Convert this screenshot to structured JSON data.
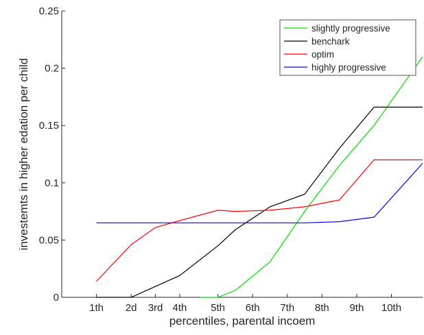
{
  "chart_data": {
    "type": "line",
    "title": "",
    "xlabel": "percentiles, parental incoem",
    "ylabel": "investemts in higher edation per child",
    "categories": [
      "1th",
      "2d",
      "3rd",
      "4th",
      "5th",
      "6th",
      "7th",
      "8th",
      "9th",
      "10th"
    ],
    "x": [
      1,
      2,
      2.7,
      3.4,
      4.5,
      5.5,
      6.5,
      7.5,
      8.5,
      9.5
    ],
    "xlim": [
      0,
      10.4
    ],
    "ylim": [
      0,
      0.25
    ],
    "yticks": [
      0,
      0.05,
      0.1,
      0.15,
      0.2,
      0.25
    ],
    "ytick_labels": [
      "0",
      "0.05",
      "0.1",
      "0.15",
      "0.2",
      "0.25"
    ],
    "grid": false,
    "legend_position": "top-right",
    "series": [
      {
        "name": "slightly progressive",
        "color": "#00e000",
        "x": [
          4,
          4.5,
          5,
          6,
          7,
          8,
          9,
          10.4
        ],
        "values": [
          0,
          0,
          0.006,
          0.031,
          0.075,
          0.115,
          0.15,
          0.21
        ]
      },
      {
        "name": "benchmark",
        "label": "benchark",
        "color": "#000000",
        "x": [
          1,
          2,
          3.4,
          4.5,
          5,
          6,
          7,
          8,
          9,
          10.4
        ],
        "values": [
          0,
          0,
          0.019,
          0.045,
          0.059,
          0.079,
          0.09,
          0.13,
          0.166,
          0.166
        ]
      },
      {
        "name": "optimum",
        "label": "optim",
        "color": "#ff0000",
        "x": [
          1,
          2,
          2.7,
          3.4,
          4.5,
          5,
          6,
          7,
          8,
          9,
          10.4
        ],
        "values": [
          0.014,
          0.046,
          0.061,
          0.067,
          0.076,
          0.075,
          0.076,
          0.079,
          0.085,
          0.12,
          0.12
        ]
      },
      {
        "name": "highly progressive",
        "color": "#0000ff",
        "x": [
          1,
          2,
          3,
          4,
          5,
          6,
          7,
          8,
          9,
          10.4
        ],
        "values": [
          0.065,
          0.065,
          0.065,
          0.065,
          0.065,
          0.065,
          0.065,
          0.066,
          0.07,
          0.117
        ]
      }
    ]
  }
}
